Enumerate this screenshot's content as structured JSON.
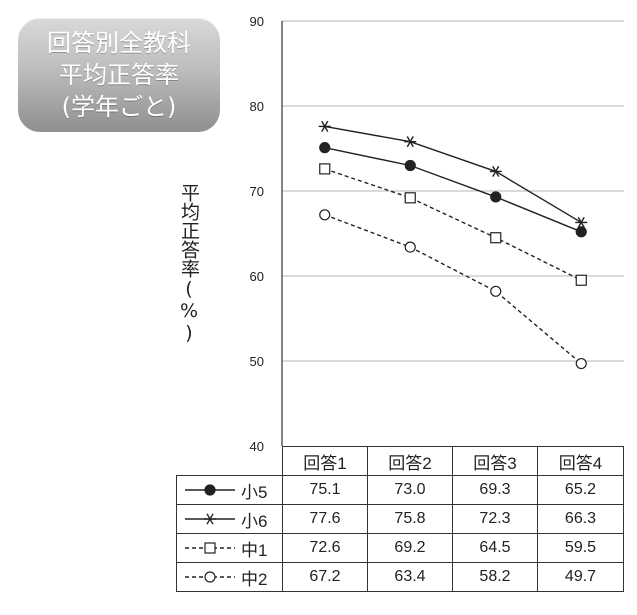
{
  "title": {
    "lines": [
      "回答別全教科",
      "平均正答率",
      "(学年ごと)"
    ]
  },
  "colors": {
    "line": "#222222",
    "grid": "#b5b5b5",
    "title_box_light": "#d9d9d9",
    "title_box_dark": "#8f8f8f"
  },
  "chart_data": {
    "type": "line",
    "title": "回答別全教科 平均正答率 (学年ごと)",
    "xlabel": "",
    "ylabel": "平均正答率(%)",
    "categories": [
      "回答1",
      "回答2",
      "回答3",
      "回答4"
    ],
    "ylim": [
      40,
      90
    ],
    "yticks": [
      40,
      50,
      60,
      70,
      80,
      90
    ],
    "grid": true,
    "legend": "table-below",
    "series": [
      {
        "name": "小5",
        "values": [
          75.1,
          73.0,
          69.3,
          65.2
        ],
        "marker": "filled-circle",
        "line_style": "solid"
      },
      {
        "name": "小6",
        "values": [
          77.6,
          75.8,
          72.3,
          66.3
        ],
        "marker": "asterisk",
        "line_style": "solid"
      },
      {
        "name": "中1",
        "values": [
          72.6,
          69.2,
          64.5,
          59.5
        ],
        "marker": "open-square",
        "line_style": "dashed"
      },
      {
        "name": "中2",
        "values": [
          67.2,
          63.4,
          58.2,
          49.7
        ],
        "marker": "open-circle",
        "line_style": "dashed"
      }
    ]
  }
}
